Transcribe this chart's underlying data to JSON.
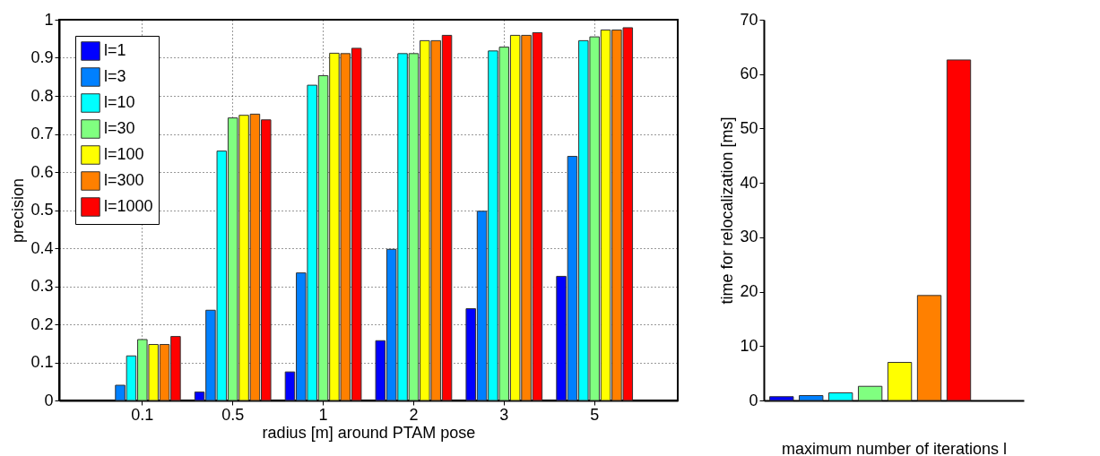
{
  "chart_data": [
    {
      "type": "bar",
      "xlabel": "radius [m] around PTAM pose",
      "ylabel": "precision",
      "categories": [
        "0.1",
        "0.5",
        "1",
        "2",
        "3",
        "5"
      ],
      "series": [
        {
          "name": "l=1",
          "color": "#0000ff",
          "values": [
            null,
            0.022,
            0.075,
            0.157,
            0.241,
            0.326
          ]
        },
        {
          "name": "l=3",
          "color": "#0080ff",
          "values": [
            0.04,
            0.237,
            0.335,
            0.397,
            0.497,
            0.641
          ]
        },
        {
          "name": "l=10",
          "color": "#00ffff",
          "values": [
            0.117,
            0.655,
            0.828,
            0.911,
            0.918,
            0.945
          ]
        },
        {
          "name": "l=30",
          "color": "#80ff80",
          "values": [
            0.16,
            0.742,
            0.853,
            0.911,
            0.928,
            0.955
          ]
        },
        {
          "name": "l=100",
          "color": "#ffff00",
          "values": [
            0.147,
            0.749,
            0.912,
            0.945,
            0.959,
            0.973
          ]
        },
        {
          "name": "l=300",
          "color": "#ff8000",
          "values": [
            0.147,
            0.752,
            0.911,
            0.945,
            0.959,
            0.973
          ]
        },
        {
          "name": "l=1000",
          "color": "#ff0000",
          "values": [
            0.168,
            0.737,
            0.925,
            0.959,
            0.966,
            0.979
          ]
        }
      ],
      "ylim": [
        0,
        1
      ],
      "yticks": [
        0,
        0.1,
        0.2,
        0.3,
        0.4,
        0.5,
        0.6,
        0.7,
        0.8,
        0.9,
        1
      ],
      "grid": true,
      "legend": "top left"
    },
    {
      "type": "bar",
      "xlabel": "maximum number of iterations l",
      "ylabel": "time for relocalization [ms]",
      "categories": [
        null,
        null,
        null,
        null,
        null,
        null,
        null
      ],
      "values": [
        0.7,
        0.9,
        1.4,
        2.6,
        7,
        19.3,
        62.6
      ],
      "colors": [
        "#0000ff",
        "#0080ff",
        "#00ffff",
        "#80ff80",
        "#ffff00",
        "#ff8000",
        "#ff0000"
      ],
      "ylim": [
        0,
        70
      ],
      "yticks": [
        0,
        10,
        20,
        30,
        40,
        50,
        60,
        70
      ]
    }
  ]
}
